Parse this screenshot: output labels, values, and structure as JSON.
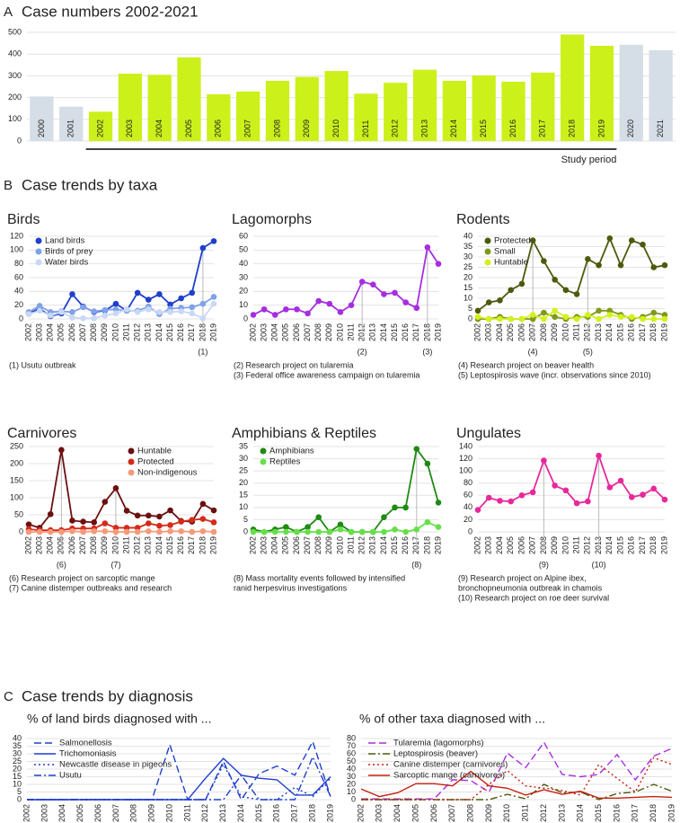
{
  "sections": [
    {
      "letter": "A",
      "title": "Case numbers 2002-2021"
    },
    {
      "letter": "B",
      "title": "Case trends by taxa"
    },
    {
      "letter": "C",
      "title": "Case trends by diagnosis"
    }
  ],
  "chart_data": [
    {
      "type": "bar",
      "categories": [
        "2000",
        "2001",
        "2002",
        "2003",
        "2004",
        "2005",
        "2006",
        "2007",
        "2008",
        "2009",
        "2010",
        "2011",
        "2012",
        "2013",
        "2014",
        "2015",
        "2016",
        "2017",
        "2018",
        "2019",
        "2020",
        "2021"
      ],
      "values": [
        205,
        158,
        135,
        310,
        305,
        385,
        215,
        228,
        277,
        295,
        322,
        218,
        268,
        328,
        277,
        302,
        273,
        315,
        490,
        438,
        443,
        418
      ],
      "colors": [
        "#d5dde6",
        "#d5dde6",
        "#ccf01a",
        "#ccf01a",
        "#ccf01a",
        "#ccf01a",
        "#ccf01a",
        "#ccf01a",
        "#ccf01a",
        "#ccf01a",
        "#ccf01a",
        "#ccf01a",
        "#ccf01a",
        "#ccf01a",
        "#ccf01a",
        "#ccf01a",
        "#ccf01a",
        "#ccf01a",
        "#ccf01a",
        "#ccf01a",
        "#d5dde6",
        "#d5dde6"
      ],
      "ylim": [
        0,
        500
      ],
      "yticks": [
        0,
        100,
        200,
        300,
        400,
        500
      ],
      "grid": true,
      "period": {
        "label": "Study period",
        "from": "2002",
        "to": "2019"
      }
    },
    {
      "type": "line",
      "title": "Birds",
      "categories": [
        "2002",
        "2003",
        "2004",
        "2005",
        "2006",
        "2007",
        "2008",
        "2009",
        "2010",
        "2011",
        "2012",
        "2013",
        "2014",
        "2015",
        "2016",
        "2017",
        "2018",
        "2019"
      ],
      "series": [
        {
          "name": "Land birds",
          "color": "#1f3fcc",
          "values": [
            8,
            15,
            4,
            8,
            36,
            18,
            10,
            12,
            22,
            12,
            38,
            28,
            36,
            21,
            30,
            38,
            103,
            113
          ]
        },
        {
          "name": "Birds of prey",
          "color": "#7fa2e8",
          "values": [
            10,
            19,
            10,
            11,
            10,
            17,
            11,
            13,
            14,
            12,
            12,
            18,
            7,
            15,
            16,
            17,
            22,
            32
          ]
        },
        {
          "name": "Water birds",
          "color": "#c9d8f5",
          "values": [
            7,
            12,
            5,
            10,
            2,
            1,
            1,
            5,
            8,
            14,
            10,
            14,
            10,
            10,
            11,
            8,
            1,
            22
          ]
        }
      ],
      "ylim": [
        0,
        120
      ],
      "yticks": [
        0,
        20,
        40,
        60,
        80,
        100,
        120
      ],
      "legend": "top-left",
      "markers": true,
      "annotations": [
        {
          "label": "(1)",
          "x": "2018"
        }
      ],
      "notes": [
        "(1) Usutu outbreak"
      ]
    },
    {
      "type": "line",
      "title": "Lagomorphs",
      "categories": [
        "2002",
        "2003",
        "2004",
        "2005",
        "2006",
        "2007",
        "2008",
        "2009",
        "2010",
        "2011",
        "2012",
        "2013",
        "2014",
        "2015",
        "2016",
        "2017",
        "2018",
        "2019"
      ],
      "series": [
        {
          "name": null,
          "color": "#a52ee0",
          "values": [
            3,
            7,
            3,
            7,
            7,
            4,
            13,
            11,
            5,
            10,
            27,
            25,
            18,
            19,
            12,
            8,
            52,
            40
          ]
        }
      ],
      "ylim": [
        0,
        60
      ],
      "yticks": [
        0,
        10,
        20,
        30,
        40,
        50,
        60
      ],
      "legend": "top-left",
      "markers": true,
      "annotations": [
        {
          "label": "(2)",
          "x": "2012"
        },
        {
          "label": "(3)",
          "x": "2018"
        }
      ],
      "notes": [
        "(2) Research project on tularemia",
        "(3) Federal office awareness campaign on tularemia"
      ]
    },
    {
      "type": "line",
      "title": "Rodents",
      "categories": [
        "2002",
        "2003",
        "2004",
        "2005",
        "2006",
        "2007",
        "2008",
        "2009",
        "2010",
        "2011",
        "2012",
        "2013",
        "2014",
        "2015",
        "2016",
        "2017",
        "2018",
        "2019"
      ],
      "series": [
        {
          "name": "Protected",
          "color": "#4d5a0c",
          "values": [
            4,
            8,
            9,
            14,
            17,
            38,
            28,
            19,
            14,
            12,
            29,
            26,
            39,
            26,
            38,
            36,
            25,
            26
          ]
        },
        {
          "name": "Small",
          "color": "#7f9a1a",
          "values": [
            0,
            0,
            1,
            0,
            0,
            0,
            3,
            1,
            0,
            1,
            1,
            4,
            4,
            2,
            0,
            1,
            3,
            2
          ]
        },
        {
          "name": "Huntable",
          "color": "#d4f01e",
          "values": [
            1,
            0,
            0,
            0,
            0,
            2,
            0,
            4,
            1,
            0,
            2,
            0,
            2,
            1,
            1,
            0,
            0,
            0
          ]
        }
      ],
      "ylim": [
        0,
        40
      ],
      "yticks": [
        0,
        5,
        10,
        15,
        20,
        25,
        30,
        35,
        40
      ],
      "legend": "top-left",
      "markers": true,
      "annotations": [
        {
          "label": "(4)",
          "x": "2007"
        },
        {
          "label": "(5)",
          "x": "2012"
        }
      ],
      "notes": [
        "(4) Research project on beaver health",
        "(5) Leptospirosis wave (incr. observations since 2010)"
      ]
    },
    {
      "type": "line",
      "title": "Carnivores",
      "categories": [
        "2002",
        "2003",
        "2004",
        "2005",
        "2006",
        "2007",
        "2008",
        "2009",
        "2010",
        "2011",
        "2012",
        "2013",
        "2014",
        "2015",
        "2016",
        "2017",
        "2018",
        "2019"
      ],
      "series": [
        {
          "name": "Huntable",
          "color": "#6b1010",
          "values": [
            22,
            12,
            52,
            240,
            33,
            30,
            28,
            88,
            128,
            62,
            48,
            48,
            45,
            63,
            32,
            30,
            82,
            63
          ]
        },
        {
          "name": "Protected",
          "color": "#d42a1a",
          "values": [
            8,
            5,
            5,
            5,
            10,
            10,
            10,
            25,
            12,
            12,
            12,
            25,
            18,
            20,
            30,
            35,
            38,
            28
          ]
        },
        {
          "name": "Non-indigenous",
          "color": "#f59a7a",
          "values": [
            0,
            0,
            0,
            0,
            2,
            0,
            2,
            2,
            0,
            0,
            0,
            2,
            0,
            2,
            2,
            0,
            2,
            0
          ]
        }
      ],
      "ylim": [
        0,
        250
      ],
      "yticks": [
        0,
        50,
        100,
        150,
        200,
        250
      ],
      "legend": "top-right",
      "markers": true,
      "annotations": [
        {
          "label": "(6)",
          "x": "2005"
        },
        {
          "label": "(7)",
          "x": "2010"
        }
      ],
      "notes": [
        "(6) Research project on sarcoptic mange",
        "(7) Canine distemper outbreaks and research"
      ]
    },
    {
      "type": "line",
      "title": "Amphibians & Reptiles",
      "categories": [
        "2002",
        "2003",
        "2004",
        "2005",
        "2006",
        "2007",
        "2008",
        "2009",
        "2010",
        "2011",
        "2012",
        "2013",
        "2014",
        "2015",
        "2016",
        "2017",
        "2018",
        "2019"
      ],
      "series": [
        {
          "name": "Amphibians",
          "color": "#1e8a14",
          "values": [
            1,
            0,
            1,
            2,
            0,
            2,
            6,
            0,
            3,
            0,
            0,
            0,
            6,
            10,
            10,
            34,
            28,
            12
          ]
        },
        {
          "name": "Reptiles",
          "color": "#66e04a",
          "values": [
            0,
            0,
            0,
            0,
            0,
            0,
            0,
            0,
            1,
            0,
            0,
            0,
            0,
            1,
            0,
            1,
            4,
            2
          ]
        }
      ],
      "ylim": [
        0,
        35
      ],
      "yticks": [
        0,
        5,
        10,
        15,
        20,
        25,
        30,
        35
      ],
      "legend": "top-left",
      "markers": true,
      "annotations": [
        {
          "label": "(8)",
          "x": "2017"
        }
      ],
      "notes": [
        "(8) Mass mortality events followed by intensified",
        "ranid herpesvirus investigations"
      ]
    },
    {
      "type": "line",
      "title": "Ungulates",
      "categories": [
        "2002",
        "2003",
        "2004",
        "2005",
        "2006",
        "2007",
        "2008",
        "2009",
        "2010",
        "2011",
        "2012",
        "2013",
        "2014",
        "2015",
        "2016",
        "2017",
        "2018",
        "2019"
      ],
      "series": [
        {
          "name": null,
          "color": "#e8289a",
          "values": [
            36,
            56,
            51,
            50,
            60,
            65,
            117,
            76,
            68,
            47,
            50,
            125,
            73,
            84,
            57,
            61,
            71,
            53
          ]
        }
      ],
      "ylim": [
        0,
        140
      ],
      "yticks": [
        0,
        20,
        40,
        60,
        80,
        100,
        120,
        140
      ],
      "legend": "top-left",
      "markers": true,
      "annotations": [
        {
          "label": "(9)",
          "x": "2008"
        },
        {
          "label": "(10)",
          "x": "2013"
        }
      ],
      "notes": [
        "(9) Research project on Alpine ibex,",
        "bronchopneumonia outbreak in chamois",
        "(10) Research project on roe deer survival"
      ]
    },
    {
      "type": "line",
      "title": "% of land birds diagnosed with ...",
      "categories": [
        "2002",
        "2003",
        "2004",
        "2005",
        "2006",
        "2007",
        "2008",
        "2009",
        "2010",
        "2011",
        "2012",
        "2013",
        "2014",
        "2015",
        "2016",
        "2017",
        "2018",
        "2019"
      ],
      "series": [
        {
          "name": "Salmonellosis",
          "color": "#1f3fcc",
          "dash": "dashed",
          "values": [
            0,
            0,
            0,
            0,
            0,
            0,
            0,
            0,
            36,
            0,
            0,
            25,
            0,
            17,
            22,
            16,
            38,
            2
          ]
        },
        {
          "name": "Trichomoniasis",
          "color": "#1f3fcc",
          "dash": "solid",
          "values": [
            0,
            0,
            0,
            0,
            0,
            0,
            0,
            0,
            0,
            0,
            14,
            27,
            16,
            14,
            13,
            3,
            3,
            15
          ]
        },
        {
          "name": "Newcastle disease in pigeons",
          "color": "#1f3fcc",
          "dash": "dotted",
          "values": [
            0,
            0,
            0,
            0,
            0,
            0,
            0,
            0,
            0,
            0,
            0,
            23,
            2,
            0,
            0,
            8,
            2,
            14
          ]
        },
        {
          "name": "Usutu",
          "color": "#1f3fcc",
          "dash": "dashdot",
          "values": [
            0,
            0,
            0,
            0,
            0,
            0,
            0,
            0,
            0,
            0,
            0,
            0,
            16,
            0,
            0,
            0,
            28,
            2
          ]
        }
      ],
      "ylim": [
        0,
        40
      ],
      "yticks": [
        0,
        5,
        10,
        15,
        20,
        25,
        30,
        35,
        40
      ],
      "legend": "top-left",
      "markers": false
    },
    {
      "type": "line",
      "title": "% of other taxa diagnosed with ...",
      "categories": [
        "2002",
        "2003",
        "2004",
        "2005",
        "2006",
        "2007",
        "2008",
        "2009",
        "2010",
        "2011",
        "2012",
        "2013",
        "2014",
        "2015",
        "2016",
        "2017",
        "2018",
        "2019"
      ],
      "series": [
        {
          "name": "Tularemia (lagomorphs)",
          "color": "#a52ee0",
          "dash": "dashed",
          "values": [
            1,
            1,
            1,
            1,
            1,
            26,
            25,
            10,
            61,
            42,
            75,
            33,
            30,
            33,
            59,
            26,
            57,
            67
          ]
        },
        {
          "name": "Leptospirosis (beaver)",
          "color": "#4d5a0c",
          "dash": "dashdot",
          "values": [
            0,
            0,
            0,
            0,
            0,
            0,
            0,
            0,
            7,
            1,
            20,
            9,
            10,
            0,
            8,
            10,
            20,
            11
          ]
        },
        {
          "name": "Canine distemper (carnivores)",
          "color": "#c4200f",
          "dash": "dotted",
          "values": [
            0,
            0,
            0,
            0,
            0,
            0,
            0,
            20,
            38,
            18,
            15,
            12,
            6,
            46,
            28,
            10,
            55,
            46
          ]
        },
        {
          "name": "Sarcoptic mange (carnivores)",
          "color": "#c4200f",
          "dash": "solid",
          "values": [
            14,
            4,
            9,
            21,
            21,
            18,
            37,
            18,
            15,
            6,
            13,
            7,
            11,
            2,
            2,
            3,
            4,
            3
          ]
        }
      ],
      "ylim": [
        0,
        80
      ],
      "yticks": [
        0,
        10,
        20,
        30,
        40,
        50,
        60,
        70,
        80
      ],
      "legend": "top-left",
      "markers": false
    }
  ]
}
